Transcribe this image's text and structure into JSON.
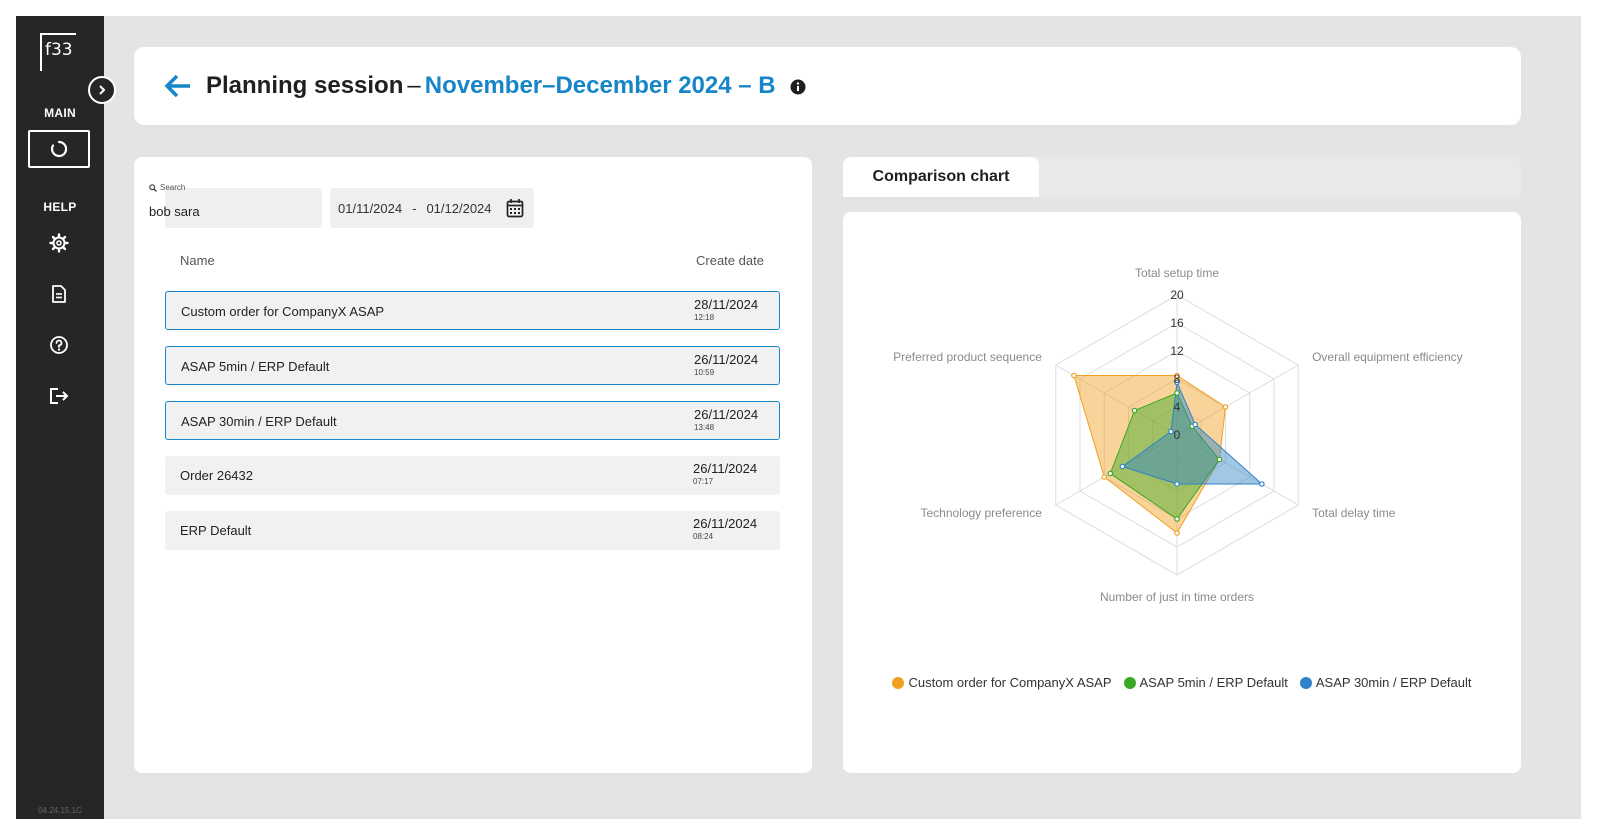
{
  "sidebar": {
    "logo_text": "f33",
    "main_label": "MAIN",
    "help_label": "HELP",
    "version": "04.24.15.1C",
    "items": [
      {
        "name": "planning",
        "icon": "refresh-ring-icon"
      },
      {
        "name": "settings",
        "icon": "gear-icon"
      },
      {
        "name": "documents",
        "icon": "document-icon"
      },
      {
        "name": "help",
        "icon": "question-icon"
      },
      {
        "name": "logout",
        "icon": "logout-icon"
      }
    ]
  },
  "header": {
    "title": "Planning session",
    "separator": "–",
    "session_name": "November–December 2024 – B"
  },
  "filters": {
    "search_label": "Search",
    "search_value": "bob sara",
    "date_from": "01/11/2024",
    "date_separator": "-",
    "date_to": "01/12/2024"
  },
  "table": {
    "col_name": "Name",
    "col_date": "Create date",
    "rows": [
      {
        "name": "Custom order for CompanyX ASAP",
        "date": "28/11/2024",
        "time": "12:18",
        "selected": true
      },
      {
        "name": "ASAP 5min / ERP Default",
        "date": "26/11/2024",
        "time": "10:59",
        "selected": true
      },
      {
        "name": "ASAP 30min / ERP Default",
        "date": "26/11/2024",
        "time": "13:48",
        "selected": true
      },
      {
        "name": "Order 26432",
        "date": "26/11/2024",
        "time": "07:17",
        "selected": false
      },
      {
        "name": "ERP Default",
        "date": "26/11/2024",
        "time": "08:24",
        "selected": false
      }
    ]
  },
  "chart_tab": {
    "label": "Comparison chart"
  },
  "chart_data": {
    "type": "radar",
    "axes": [
      "Total setup time",
      "Overall equipment efficiency",
      "Total delay time",
      "Number of just in time orders",
      "Technology preference",
      "Preferred product sequence"
    ],
    "radial_ticks": [
      "20",
      "16",
      "12",
      "8",
      "4",
      "0"
    ],
    "rmax": 20,
    "series": [
      {
        "name": "Custom order for CompanyX ASAP",
        "color": "#f0a020",
        "values": [
          8.5,
          8,
          7,
          14,
          12,
          17
        ]
      },
      {
        "name": "ASAP 5min / ERP Default",
        "color": "#3aa824",
        "values": [
          6,
          2.5,
          7,
          12,
          11,
          7
        ]
      },
      {
        "name": "ASAP 30min / ERP Default",
        "color": "#2f83c9",
        "values": [
          7.5,
          3,
          14,
          7,
          9,
          1
        ]
      }
    ]
  }
}
